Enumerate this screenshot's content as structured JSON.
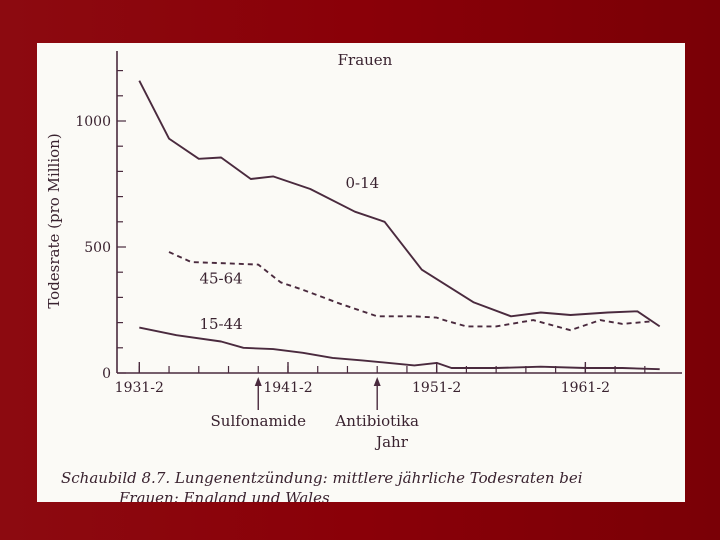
{
  "chart_data": {
    "type": "line",
    "title": "Frauen",
    "ylabel": "Todesrate (pro Million)",
    "xlabel": "Jahr",
    "ylim": [
      0,
      1250
    ],
    "xlim": [
      1930,
      1968
    ],
    "grid": false,
    "x_ticks": [
      {
        "x": 1931.5,
        "label": "1931-2"
      },
      {
        "x": 1941.5,
        "label": "1941-2"
      },
      {
        "x": 1951.5,
        "label": "1951-2"
      },
      {
        "x": 1961.5,
        "label": "1961-2"
      }
    ],
    "y_ticks": [
      {
        "y": 0,
        "label": "0"
      },
      {
        "y": 500,
        "label": "500"
      },
      {
        "y": 1000,
        "label": "1000"
      }
    ],
    "series": [
      {
        "name": "0-14",
        "style": "solid",
        "x": [
          1931.5,
          1933.5,
          1935.5,
          1937.0,
          1939.0,
          1940.5,
          1943.0,
          1946.0,
          1948.0,
          1950.5,
          1954.0,
          1956.5,
          1958.5,
          1960.5,
          1963.0,
          1965.0,
          1966.5
        ],
        "values": [
          1160,
          930,
          850,
          855,
          770,
          780,
          730,
          640,
          600,
          410,
          280,
          225,
          240,
          230,
          240,
          245,
          185
        ]
      },
      {
        "name": "45-64",
        "style": "dashed",
        "x": [
          1933.5,
          1935.0,
          1937.5,
          1939.5,
          1941.0,
          1942.5,
          1945.0,
          1947.5,
          1950.0,
          1951.5,
          1952.0,
          1953.5,
          1955.5,
          1958.0,
          1960.5,
          1962.5,
          1964.0,
          1966.0
        ],
        "values": [
          480,
          440,
          435,
          430,
          360,
          330,
          275,
          225,
          225,
          220,
          210,
          185,
          185,
          210,
          170,
          210,
          195,
          205
        ]
      },
      {
        "name": "15-44",
        "style": "solid",
        "x": [
          1931.5,
          1934.0,
          1937.0,
          1938.5,
          1940.5,
          1942.5,
          1944.5,
          1946.5,
          1950.0,
          1951.5,
          1952.5,
          1955.5,
          1958.5,
          1961.5,
          1964.0,
          1966.5
        ],
        "values": [
          180,
          150,
          125,
          100,
          95,
          80,
          60,
          50,
          30,
          40,
          20,
          20,
          25,
          20,
          20,
          15
        ]
      }
    ],
    "annotations": [
      {
        "text": "Sulfonamide",
        "x": 1939.5
      },
      {
        "text": "Antibiotika",
        "x": 1947.5
      }
    ],
    "caption": "Schaubild 8.7. Lungenentzündung: mittlere jährliche Todesraten bei Frauen: England und Wales"
  },
  "colors": {
    "line": "#4a2a3e",
    "text": "#3a2330"
  }
}
